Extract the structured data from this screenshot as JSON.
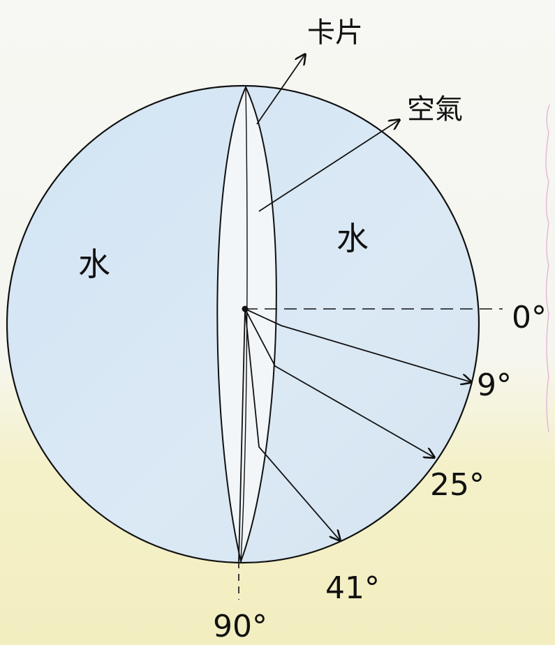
{
  "labels": {
    "card": "卡片",
    "air": "空氣",
    "water_left": "水",
    "water_right": "水",
    "deg_0": "0°",
    "deg_9": "9°",
    "deg_25": "25°",
    "deg_41": "41°",
    "deg_90": "90°"
  },
  "colors": {
    "water": "#d9e8f5",
    "ink": "#111111",
    "paper_yellow": "#f3eec0"
  }
}
